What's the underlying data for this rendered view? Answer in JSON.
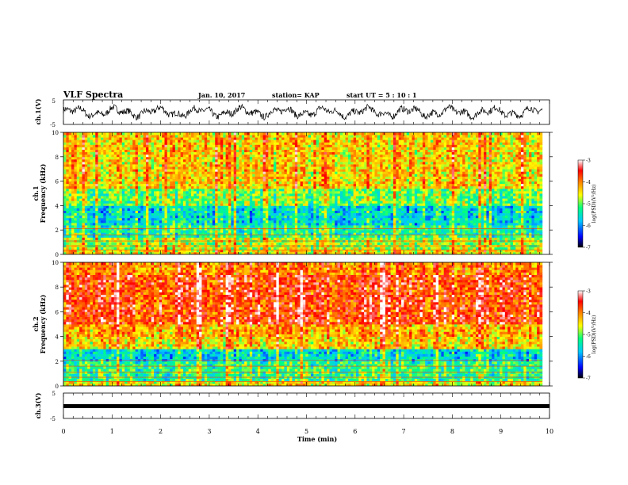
{
  "header": {
    "title": "VLF Spectra",
    "date": "Jan. 10, 2017",
    "station": "station= KAP",
    "start_ut": "start UT = 5 : 10 : 1"
  },
  "axes": {
    "x_ticks": [
      "0",
      "1",
      "2",
      "3",
      "4",
      "5",
      "6",
      "7",
      "8",
      "9",
      "10"
    ],
    "x_label": "Time (min)",
    "freq_ticks": [
      "0",
      "2",
      "4",
      "6",
      "8",
      "10"
    ],
    "volt_ticks_top": [
      "5",
      "-5"
    ],
    "volt_ticks_bottom": [
      "5",
      "-5"
    ],
    "ch1_wave_label": "ch.1(V)",
    "ch2_label_line1": "ch.1",
    "ch2_label_line2": "Frequency (kHz)",
    "ch3_label_line1": "ch.2",
    "ch3_label_line2": "Frequency (kHz)",
    "ch3_wave_label": "ch.3(V)"
  },
  "colorbar": {
    "ticks": [
      "-3",
      "-4",
      "-5",
      "-6",
      "-7"
    ],
    "label": "log(PSD)(V²/Hz)"
  },
  "chart_data": [
    {
      "type": "line",
      "panel": "ch.1(V)",
      "x_range": [
        0,
        10
      ],
      "ylim": [
        -5,
        5
      ],
      "description_values": "waveform oscillating roughly between -3 and 3 V",
      "x_unit": "min"
    },
    {
      "type": "heatmap",
      "panel": "ch.1 spectrogram",
      "x_range": [
        0,
        9.85
      ],
      "ylim": [
        0,
        10
      ],
      "y_unit": "kHz",
      "color_scale_range": [
        -7,
        -3
      ],
      "bands": [
        {
          "freq": [
            0,
            0.5
          ],
          "log_psd": -4.5
        },
        {
          "freq": [
            0.5,
            1.5
          ],
          "log_psd": -4.8
        },
        {
          "freq": [
            1.5,
            2.5
          ],
          "log_psd": -5.3
        },
        {
          "freq": [
            2.5,
            4.0
          ],
          "log_psd": -5.6
        },
        {
          "freq": [
            4.0,
            5.5
          ],
          "log_psd": -5.0
        },
        {
          "freq": [
            5.5,
            10.0
          ],
          "log_psd": -4.4
        }
      ]
    },
    {
      "type": "heatmap",
      "panel": "ch.2 spectrogram",
      "x_range": [
        0,
        9.85
      ],
      "ylim": [
        0,
        10
      ],
      "y_unit": "kHz",
      "color_scale_range": [
        -7,
        -3
      ],
      "bands": [
        {
          "freq": [
            0,
            0.5
          ],
          "log_psd": -4.5
        },
        {
          "freq": [
            0.5,
            2.0
          ],
          "log_psd": -5.2
        },
        {
          "freq": [
            2.0,
            3.0
          ],
          "log_psd": -5.6
        },
        {
          "freq": [
            3.0,
            5.0
          ],
          "log_psd": -4.4
        },
        {
          "freq": [
            5.0,
            9.0
          ],
          "log_psd": -3.9
        },
        {
          "freq": [
            9.0,
            10.0
          ],
          "log_psd": -4.2
        }
      ]
    },
    {
      "type": "line",
      "panel": "ch.3(V)",
      "x_range": [
        0,
        9.85
      ],
      "ylim": [
        -5,
        5
      ],
      "values_constant": 0,
      "x_unit": "min"
    }
  ],
  "colors": {
    "axis": "#000000",
    "ramp": [
      "#000000",
      "#0000ff",
      "#00c8ff",
      "#00ff80",
      "#ffff00",
      "#ff8000",
      "#ff0000",
      "#ffffff"
    ]
  }
}
